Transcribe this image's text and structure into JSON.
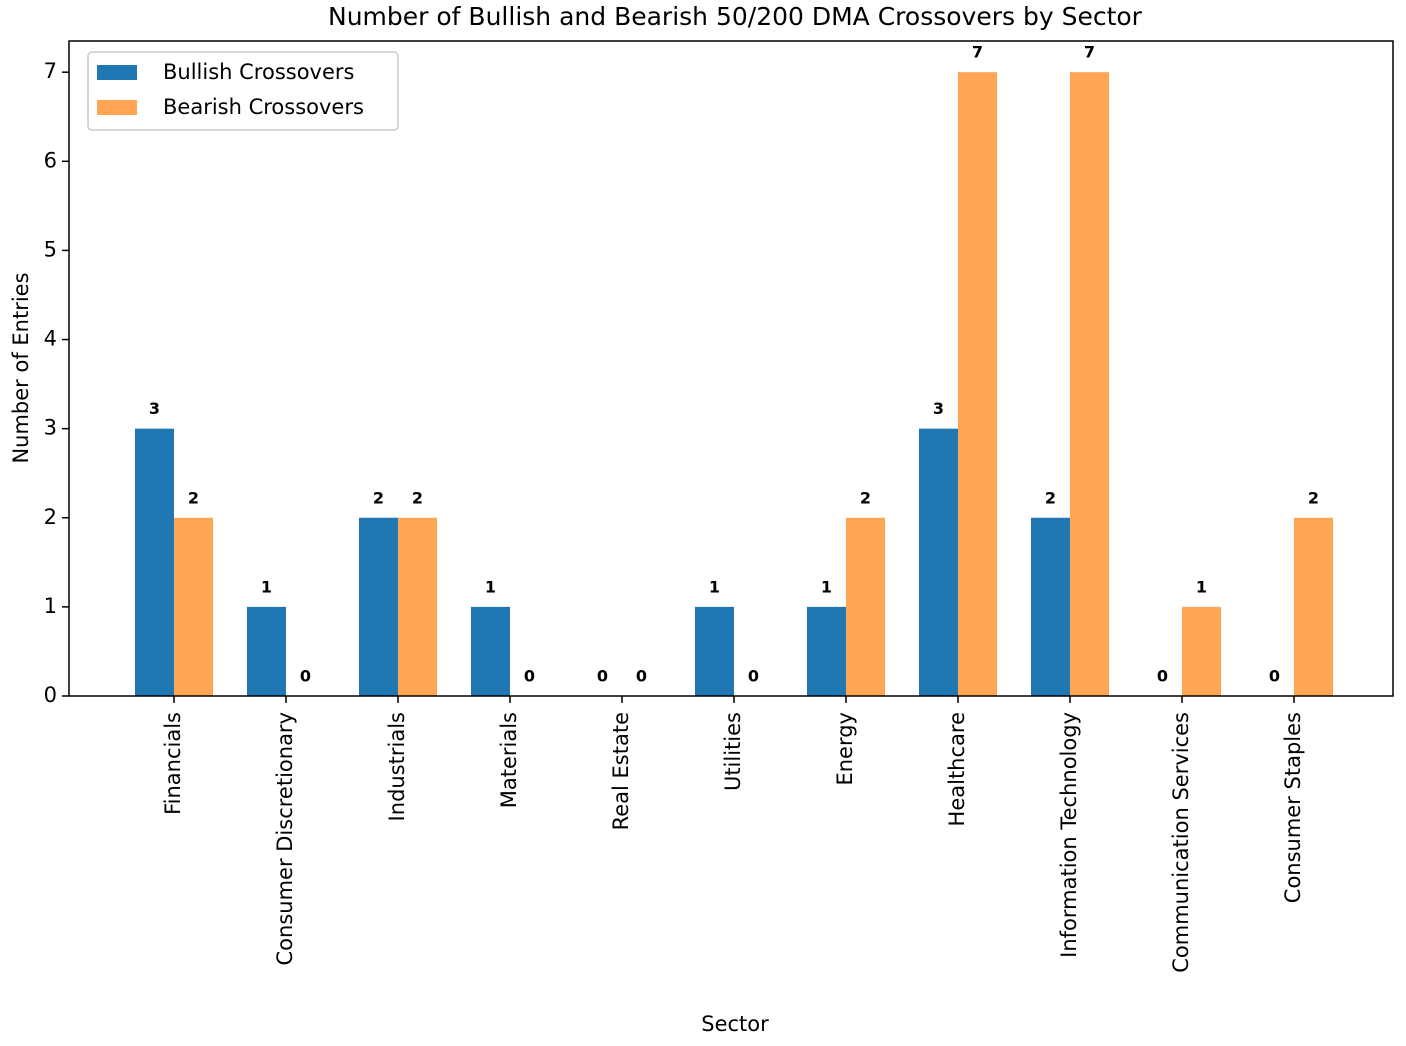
{
  "chart_data": {
    "type": "bar",
    "title": "Number of Bullish and Bearish 50/200 DMA Crossovers by Sector",
    "x_label": "Sector",
    "y_label": "Number of Entries",
    "categories": [
      "Financials",
      "Consumer Discretionary",
      "Industrials",
      "Materials",
      "Real Estate",
      "Utilities",
      "Energy",
      "Healthcare",
      "Information Technology",
      "Communication Services",
      "Consumer Staples"
    ],
    "series": [
      {
        "name": "Bullish Crossovers",
        "color": "#1f77b4",
        "values": [
          3,
          1,
          2,
          1,
          0,
          1,
          1,
          3,
          2,
          0,
          0
        ]
      },
      {
        "name": "Bearish Crossovers",
        "color": "#ffa554",
        "values": [
          2,
          0,
          2,
          0,
          0,
          0,
          2,
          7,
          7,
          1,
          2
        ]
      }
    ],
    "ylim": [
      0,
      7.35
    ],
    "yticks": [
      0,
      1,
      2,
      3,
      4,
      5,
      6,
      7
    ],
    "legend": "upper left",
    "grid": false
  }
}
